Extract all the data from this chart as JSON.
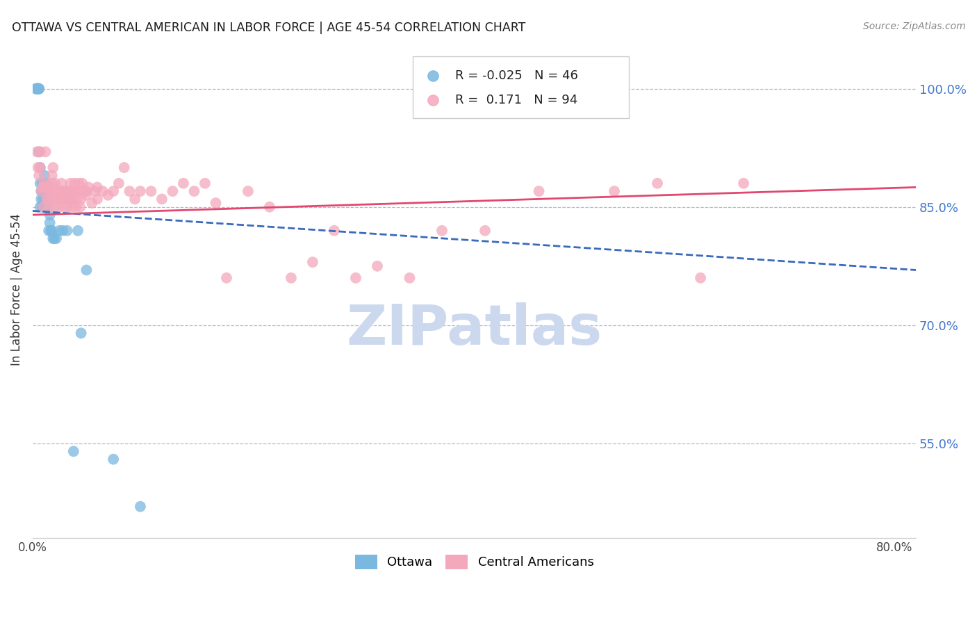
{
  "title": "OTTAWA VS CENTRAL AMERICAN IN LABOR FORCE | AGE 45-54 CORRELATION CHART",
  "source": "Source: ZipAtlas.com",
  "ylabel": "In Labor Force | Age 45-54",
  "xlim": [
    0.0,
    0.82
  ],
  "ylim": [
    0.43,
    1.06
  ],
  "xtick_positions": [
    0.0,
    0.1,
    0.2,
    0.3,
    0.4,
    0.5,
    0.6,
    0.7,
    0.8
  ],
  "xticklabels": [
    "0.0%",
    "",
    "",
    "",
    "",
    "",
    "",
    "",
    "80.0%"
  ],
  "yticks_right": [
    0.55,
    0.7,
    0.85,
    1.0
  ],
  "ytick_labels_right": [
    "55.0%",
    "70.0%",
    "85.0%",
    "100.0%"
  ],
  "legend_R_ottawa": "-0.025",
  "legend_N_ottawa": "46",
  "legend_R_central": "0.171",
  "legend_N_central": "94",
  "ottawa_color": "#7ab8e0",
  "central_color": "#f4a8bc",
  "ottawa_line_color": "#3a6abf",
  "central_line_color": "#e04870",
  "watermark": "ZIPatlas",
  "watermark_color": "#ccd8ee",
  "bg_color": "#ffffff",
  "grid_color": "#aabbdd",
  "title_color": "#1a1a1a",
  "source_color": "#888888",
  "axis_label_color": "#333333",
  "right_tick_color": "#4477cc",
  "legend_border_color": "#cccccc",
  "ottawa_x": [
    0.003,
    0.004,
    0.004,
    0.004,
    0.004,
    0.005,
    0.005,
    0.005,
    0.005,
    0.005,
    0.006,
    0.006,
    0.006,
    0.007,
    0.007,
    0.007,
    0.008,
    0.008,
    0.009,
    0.009,
    0.009,
    0.01,
    0.01,
    0.011,
    0.011,
    0.012,
    0.013,
    0.013,
    0.014,
    0.015,
    0.016,
    0.016,
    0.017,
    0.018,
    0.019,
    0.02,
    0.022,
    0.025,
    0.028,
    0.032,
    0.038,
    0.042,
    0.045,
    0.05,
    0.075,
    0.1
  ],
  "ottawa_y": [
    1.0,
    1.0,
    1.0,
    1.0,
    1.0,
    1.0,
    1.0,
    1.0,
    1.0,
    1.0,
    1.0,
    1.0,
    0.92,
    0.9,
    0.88,
    0.85,
    0.87,
    0.86,
    0.88,
    0.87,
    0.85,
    0.86,
    0.85,
    0.89,
    0.85,
    0.88,
    0.87,
    0.86,
    0.85,
    0.82,
    0.83,
    0.84,
    0.82,
    0.82,
    0.81,
    0.81,
    0.81,
    0.82,
    0.82,
    0.82,
    0.54,
    0.82,
    0.69,
    0.77,
    0.53,
    0.47
  ],
  "central_x": [
    0.004,
    0.005,
    0.006,
    0.007,
    0.008,
    0.009,
    0.01,
    0.01,
    0.011,
    0.012,
    0.013,
    0.014,
    0.015,
    0.016,
    0.016,
    0.017,
    0.018,
    0.018,
    0.019,
    0.02,
    0.021,
    0.022,
    0.023,
    0.024,
    0.025,
    0.026,
    0.027,
    0.028,
    0.029,
    0.03,
    0.031,
    0.032,
    0.033,
    0.034,
    0.035,
    0.035,
    0.036,
    0.037,
    0.038,
    0.039,
    0.04,
    0.041,
    0.042,
    0.043,
    0.044,
    0.045,
    0.046,
    0.048,
    0.05,
    0.052,
    0.055,
    0.058,
    0.06,
    0.065,
    0.07,
    0.075,
    0.08,
    0.085,
    0.09,
    0.095,
    0.1,
    0.11,
    0.12,
    0.13,
    0.14,
    0.15,
    0.16,
    0.17,
    0.18,
    0.2,
    0.22,
    0.24,
    0.26,
    0.28,
    0.3,
    0.32,
    0.35,
    0.38,
    0.42,
    0.47,
    0.54,
    0.58,
    0.62,
    0.66,
    0.007,
    0.012,
    0.015,
    0.02,
    0.025,
    0.03,
    0.035,
    0.04,
    0.05,
    0.06
  ],
  "central_y": [
    0.92,
    0.9,
    0.89,
    0.9,
    0.87,
    0.875,
    0.85,
    0.875,
    0.88,
    0.875,
    0.86,
    0.875,
    0.85,
    0.865,
    0.875,
    0.87,
    0.89,
    0.88,
    0.9,
    0.85,
    0.88,
    0.86,
    0.87,
    0.85,
    0.86,
    0.87,
    0.88,
    0.86,
    0.85,
    0.87,
    0.86,
    0.85,
    0.87,
    0.86,
    0.88,
    0.87,
    0.85,
    0.86,
    0.87,
    0.88,
    0.85,
    0.86,
    0.87,
    0.88,
    0.85,
    0.86,
    0.88,
    0.87,
    0.865,
    0.875,
    0.855,
    0.87,
    0.875,
    0.87,
    0.865,
    0.87,
    0.88,
    0.9,
    0.87,
    0.86,
    0.87,
    0.87,
    0.86,
    0.87,
    0.88,
    0.87,
    0.88,
    0.855,
    0.76,
    0.87,
    0.85,
    0.76,
    0.78,
    0.82,
    0.76,
    0.775,
    0.76,
    0.82,
    0.82,
    0.87,
    0.87,
    0.88,
    0.76,
    0.88,
    0.92,
    0.92,
    0.86,
    0.86,
    0.87,
    0.87,
    0.86,
    0.87,
    0.87,
    0.86
  ]
}
